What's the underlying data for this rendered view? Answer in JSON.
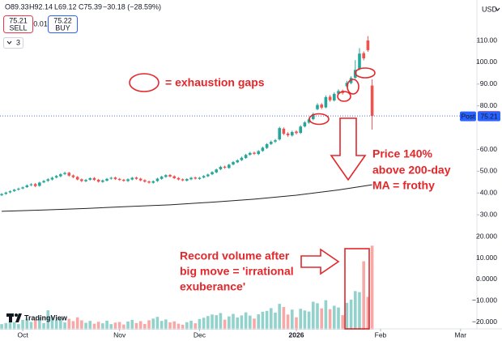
{
  "header": {
    "ohlc": [
      "O89.33",
      "H92.14",
      "L69.12",
      "C75.39",
      "−30.18 (−28.59%)"
    ],
    "sell_price": "75.21",
    "sell_label": "SELL",
    "spread": "0.01",
    "buy_price": "75.22",
    "buy_label": "BUY",
    "indicator_count": "3",
    "currency": "USD",
    "logo": "TradingView"
  },
  "chart_data": {
    "type": "candlestick",
    "x": [
      -5,
      -4,
      -3,
      -2,
      -1,
      0,
      1,
      2,
      3,
      4,
      5,
      6,
      7,
      8,
      9,
      10,
      11,
      12,
      13,
      14,
      15,
      16,
      17,
      18,
      19,
      20,
      21,
      22,
      23,
      24,
      25,
      26,
      27,
      28,
      29,
      30,
      31,
      32,
      33,
      34,
      35,
      36,
      37,
      38,
      39,
      40,
      41,
      42,
      43,
      44,
      45,
      46,
      47,
      48,
      49,
      50,
      51,
      52,
      53,
      54,
      55,
      56,
      57,
      58,
      59,
      60,
      61,
      62,
      63,
      64,
      65,
      66,
      67,
      68,
      69,
      70,
      71,
      72,
      73,
      74,
      75,
      76,
      77,
      78,
      79,
      80,
      81,
      82,
      83
    ],
    "open": [
      39.0,
      39.6,
      40.3,
      40.9,
      41.6,
      42.1,
      42.7,
      43.6,
      44.1,
      43.3,
      44.9,
      45.6,
      46.2,
      47.1,
      47.7,
      48.7,
      49.3,
      48.1,
      47.4,
      46.3,
      45.4,
      46.1,
      46.9,
      46.1,
      45.1,
      45.7,
      46.6,
      47.1,
      46.5,
      46.1,
      45.5,
      46.2,
      47.1,
      46.6,
      45.9,
      45.3,
      44.7,
      45.5,
      46.5,
      47.4,
      48.3,
      47.7,
      46.9,
      46.3,
      45.7,
      46.3,
      47.1,
      46.5,
      47.1,
      47.7,
      48.6,
      49.5,
      50.9,
      52.1,
      51.5,
      53.1,
      54.1,
      55.1,
      56.1,
      57.6,
      58.5,
      57.9,
      59.3,
      60.7,
      62.5,
      63.6,
      64.6,
      69.5,
      67.3,
      66.4,
      68.2,
      67.6,
      70.6,
      72.3,
      73.9,
      78.5,
      80.6,
      79.3,
      84.2,
      82.5,
      85.6,
      86.9,
      89.0,
      90.5,
      92.9,
      97.0,
      104.2,
      110.0,
      89.33
    ],
    "high": [
      40.0,
      40.6,
      41.2,
      41.9,
      42.5,
      43.0,
      44.0,
      44.5,
      44.6,
      45.2,
      46.0,
      46.8,
      47.5,
      48.3,
      49.1,
      49.8,
      49.7,
      48.5,
      47.8,
      46.7,
      46.5,
      47.2,
      47.3,
      46.5,
      46.2,
      46.9,
      47.4,
      47.5,
      46.9,
      46.5,
      46.7,
      47.4,
      47.5,
      47.0,
      46.3,
      45.7,
      45.8,
      47.0,
      47.9,
      48.6,
      48.7,
      48.1,
      47.3,
      46.7,
      46.8,
      47.4,
      47.5,
      47.4,
      48.2,
      48.9,
      50.0,
      51.2,
      52.5,
      52.6,
      53.4,
      54.7,
      55.5,
      56.7,
      58.0,
      58.9,
      59.0,
      59.7,
      61.3,
      62.9,
      64.1,
      64.8,
      70.4,
      70.1,
      68.0,
      68.6,
      68.8,
      71.1,
      73.0,
      74.5,
      76.9,
      81.2,
      81.3,
      84.8,
      85.0,
      86.2,
      87.6,
      87.5,
      91.5,
      93.6,
      101.0,
      106.5,
      105.0,
      112.0,
      92.14
    ],
    "low": [
      38.6,
      39.2,
      39.9,
      40.5,
      41.1,
      41.7,
      42.3,
      43.1,
      42.7,
      42.9,
      44.5,
      45.1,
      45.8,
      46.7,
      47.2,
      48.2,
      47.5,
      46.8,
      45.8,
      45.0,
      45.0,
      45.7,
      45.6,
      44.8,
      44.7,
      45.3,
      46.1,
      46.0,
      45.6,
      45.2,
      45.1,
      45.8,
      46.1,
      45.4,
      44.8,
      44.3,
      44.3,
      45.1,
      46.1,
      47.0,
      47.2,
      46.4,
      45.8,
      45.4,
      45.3,
      45.9,
      46.2,
      46.1,
      46.7,
      47.3,
      48.2,
      49.1,
      50.5,
      51.1,
      51.1,
      52.7,
      53.7,
      54.7,
      55.7,
      57.1,
      57.5,
      57.4,
      58.9,
      60.2,
      62.0,
      63.0,
      64.1,
      66.6,
      65.8,
      65.9,
      66.9,
      67.1,
      70.1,
      71.8,
      73.4,
      78.0,
      78.5,
      78.9,
      81.9,
      82.0,
      85.0,
      85.2,
      88.4,
      89.9,
      92.3,
      96.4,
      100.9,
      104.8,
      69.12
    ],
    "close": [
      39.5,
      40.2,
      40.8,
      41.5,
      42.0,
      42.6,
      43.5,
      44.0,
      43.2,
      44.8,
      45.5,
      46.3,
      47.0,
      47.8,
      48.6,
      49.2,
      48.0,
      47.3,
      46.2,
      45.5,
      46.0,
      46.8,
      46.0,
      45.2,
      45.8,
      46.5,
      47.0,
      46.4,
      46.0,
      45.6,
      46.3,
      47.0,
      46.5,
      45.8,
      45.2,
      44.8,
      45.4,
      46.6,
      47.5,
      48.2,
      47.6,
      46.8,
      46.2,
      45.8,
      46.4,
      47.0,
      46.6,
      47.0,
      47.8,
      48.5,
      49.6,
      50.8,
      52.0,
      51.6,
      53.0,
      54.2,
      55.0,
      56.2,
      57.5,
      58.4,
      58.0,
      59.2,
      60.8,
      62.4,
      63.5,
      64.2,
      69.8,
      67.2,
      66.5,
      68.0,
      67.5,
      70.5,
      72.4,
      73.8,
      76.2,
      80.4,
      79.2,
      84.0,
      82.6,
      85.5,
      86.8,
      85.9,
      90.6,
      92.8,
      96.5,
      104.0,
      101.8,
      105.57,
      75.39
    ],
    "colors": {
      "up": "#26a69a",
      "down": "#ef5350"
    },
    "xlim": [
      -5.4,
      107.7
    ],
    "xticks": [
      {
        "value": 0,
        "label": "Oct"
      },
      {
        "value": 23,
        "label": "Nov"
      },
      {
        "value": 42,
        "label": "Dec"
      },
      {
        "value": 65,
        "label": "2026"
      },
      {
        "value": 85,
        "label": "Feb"
      },
      {
        "value": 104,
        "label": "Mar"
      }
    ],
    "ylim": [
      25,
      125
    ],
    "yticks": [
      {
        "value": 30,
        "label": "30.00"
      },
      {
        "value": 40,
        "label": "40.00"
      },
      {
        "value": 50,
        "label": "50.00"
      },
      {
        "value": 60,
        "label": "60.00"
      },
      {
        "value": 80,
        "label": "80.00"
      },
      {
        "value": 90,
        "label": "90.00"
      },
      {
        "value": 100,
        "label": "100.00"
      },
      {
        "value": 110,
        "label": "110.00"
      }
    ],
    "last_price": 75.39,
    "post_label": "Post",
    "post_price": 75.21,
    "moving_average": {
      "x": [
        -5,
        5,
        15,
        25,
        35,
        45,
        55,
        65,
        75,
        83
      ],
      "values": [
        31.6,
        32.2,
        32.9,
        33.8,
        34.6,
        35.8,
        37.2,
        39.0,
        41.4,
        43.8
      ],
      "color": "#222222"
    },
    "volume": {
      "values": [
        -21,
        -20.5,
        -19.8,
        -20.2,
        -21,
        -19,
        -18.5,
        -20,
        -19,
        -18,
        -20.5,
        -14.5,
        -17.5,
        -19,
        -18.2,
        -20.2,
        -18.5,
        -19.6,
        -17.8,
        -19.2,
        -20.4,
        -19.5,
        -20.8,
        -19.9,
        -20.6,
        -19.4,
        -21,
        -20.3,
        -20,
        -21.2,
        -19.8,
        -19,
        -20.5,
        -19.6,
        -20.9,
        -19.2,
        -18.4,
        -17.6,
        -19.5,
        -18.8,
        -20.2,
        -19.7,
        -20.8,
        -21.3,
        -20.1,
        -19.4,
        -20.6,
        -18.6,
        -18,
        -17.2,
        -16.5,
        -16.8,
        -15.8,
        -18.9,
        -17.4,
        -16.2,
        -17.9,
        -16.9,
        -15.5,
        -17,
        -18.4,
        -16.4,
        -15.2,
        -14.8,
        -13.5,
        -15.6,
        -11.5,
        -13,
        -16.5,
        -14.2,
        -17.8,
        -13.8,
        -14.6,
        -15.1,
        -10.5,
        -11.2,
        -13.6,
        -9.8,
        -14,
        -12.4,
        -13.2,
        -16.8,
        -11,
        -9.5,
        -5.5,
        -6,
        8.5,
        -8.2,
        15.8
      ],
      "ylim": [
        -23.6,
        22
      ],
      "yticks": [
        {
          "value": 20,
          "label": "20.000"
        },
        {
          "value": 10,
          "label": "10.000"
        },
        {
          "value": 0,
          "label": "0.0000"
        },
        {
          "value": -10,
          "label": "−10.000"
        },
        {
          "value": -20,
          "label": "−20.000"
        }
      ]
    }
  },
  "annotations": {
    "gap_legend": "= exhaustion gaps",
    "price_note": [
      "Price 140%",
      "above 200-day",
      "MA = frothy"
    ],
    "volume_note": [
      "Record volume after",
      "big move = 'irrational",
      "exuberance'"
    ]
  }
}
